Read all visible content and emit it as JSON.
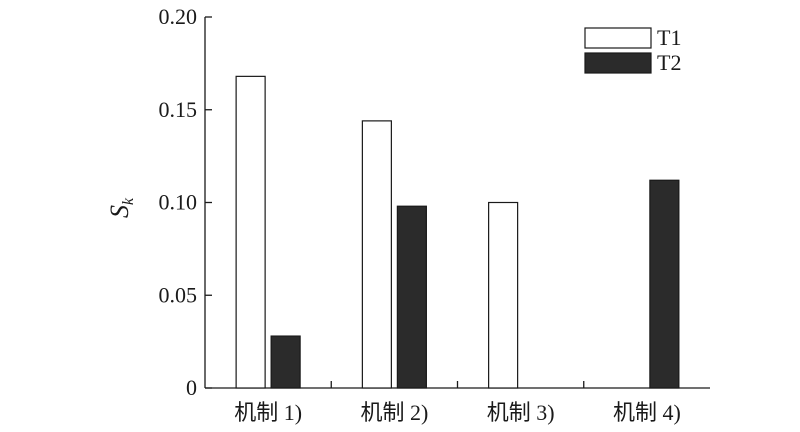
{
  "chart_data": {
    "type": "bar",
    "categories": [
      "机制 1)",
      "机制 2)",
      "机制 3)",
      "机制 4)"
    ],
    "series": [
      {
        "name": "T1",
        "values": [
          0.168,
          0.144,
          0.1,
          0.0
        ],
        "color": "#ffffff"
      },
      {
        "name": "T2",
        "values": [
          0.028,
          0.098,
          0.0,
          0.112
        ],
        "color": "#2b2b2b"
      }
    ],
    "ylabel": {
      "main": "S",
      "sub": "k"
    },
    "xlabel": "",
    "title": "",
    "ylim": [
      0,
      0.2
    ],
    "yticks": [
      {
        "value": 0,
        "label": "0"
      },
      {
        "value": 0.05,
        "label": "0.05"
      },
      {
        "value": 0.1,
        "label": "0.10"
      },
      {
        "value": 0.15,
        "label": "0.15"
      },
      {
        "value": 0.2,
        "label": "0.20"
      }
    ],
    "grid": false,
    "legend_position": "top-right"
  }
}
